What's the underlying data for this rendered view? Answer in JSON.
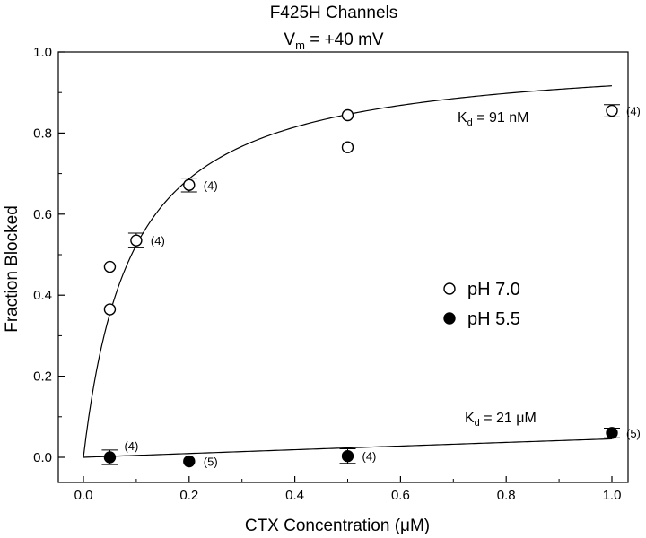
{
  "chart_data": {
    "type": "scatter",
    "title_line1": "F425H Channels",
    "title_line2": {
      "main": "V",
      "sub": "m",
      "rest": " = +40 mV"
    },
    "xlabel": "CTX Concentration (μM)",
    "ylabel": "Fraction Blocked",
    "xlim": [
      0,
      1.0
    ],
    "ylim": [
      0,
      1.0
    ],
    "x_ticks": [
      "0.0",
      "0.2",
      "0.4",
      "0.6",
      "0.8",
      "1.0"
    ],
    "y_ticks": [
      "0.0",
      "0.2",
      "0.4",
      "0.6",
      "0.8",
      "1.0"
    ],
    "grid": false,
    "legend_position": "right-middle",
    "series": [
      {
        "name": "pH 7.0",
        "marker": "open-circle",
        "points": [
          {
            "x": 0.05,
            "y": 0.47
          },
          {
            "x": 0.05,
            "y": 0.365
          },
          {
            "x": 0.1,
            "y": 0.535,
            "err": 0.018,
            "n": "(4)"
          },
          {
            "x": 0.2,
            "y": 0.672,
            "err": 0.017,
            "n": "(4)"
          },
          {
            "x": 0.5,
            "y": 0.844
          },
          {
            "x": 0.5,
            "y": 0.765
          },
          {
            "x": 1.0,
            "y": 0.855,
            "err": 0.015,
            "n": "(4)"
          }
        ],
        "fit": {
          "Kd": 0.091,
          "label": {
            "main": "K",
            "sub": "d",
            "rest": " = 91 nM"
          }
        }
      },
      {
        "name": "pH 5.5",
        "marker": "filled-circle",
        "points": [
          {
            "x": 0.05,
            "y": 0.0,
            "err": 0.018,
            "n": "(4)"
          },
          {
            "x": 0.2,
            "y": -0.01,
            "n": "(5)"
          },
          {
            "x": 0.5,
            "y": 0.003,
            "err": 0.018,
            "n": "(4)"
          },
          {
            "x": 1.0,
            "y": 0.06,
            "err": 0.012,
            "n": "(5)"
          }
        ],
        "fit": {
          "Kd": 21,
          "label": {
            "main": "K",
            "sub": "d",
            "rest": " = 21 μM"
          }
        }
      }
    ]
  }
}
